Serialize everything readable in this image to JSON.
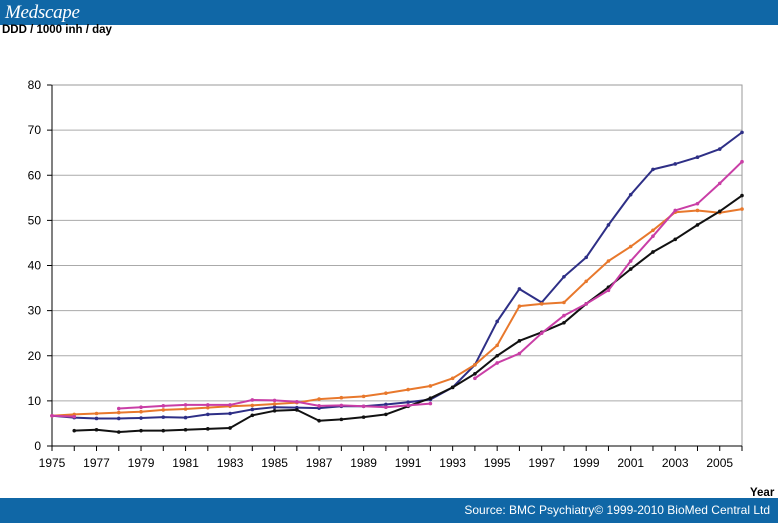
{
  "header": {
    "brand": "Medscape"
  },
  "footer": {
    "source": "Source: BMC Psychiatry© 1999-2010 BioMed Central Ltd"
  },
  "colors": {
    "bar": "#1067a6",
    "grid": "#aaaaaa"
  },
  "chart_data": {
    "type": "line",
    "title": "",
    "ylabel": "DDD / 1000 inh / day",
    "xlabel": "Year",
    "xlim": [
      1975,
      2006
    ],
    "ylim": [
      0,
      80
    ],
    "yticks": [
      0,
      10,
      20,
      30,
      40,
      50,
      60,
      70,
      80
    ],
    "xticks": [
      "1975",
      "1977",
      "1979",
      "1981",
      "1983",
      "1985",
      "1987",
      "1989",
      "1991",
      "1993",
      "1995",
      "1997",
      "1999",
      "2001",
      "2003",
      "2005"
    ],
    "grid": "horizontal",
    "series": [
      {
        "color": "#2e2f86",
        "x": [
          1975,
          1976,
          1977,
          1978,
          1979,
          1980,
          1981,
          1982,
          1983,
          1984,
          1985,
          1986,
          1987,
          1988,
          1989,
          1990,
          1991,
          1992,
          1993,
          1994,
          1995,
          1996,
          1997,
          1998,
          1999,
          2000,
          2001,
          2002,
          2003,
          2004,
          2005,
          2006
        ],
        "values": [
          6.7,
          6.3,
          6.1,
          6.1,
          6.2,
          6.4,
          6.3,
          7.0,
          7.2,
          8.1,
          8.6,
          8.5,
          8.4,
          8.8,
          8.8,
          9.2,
          9.7,
          10.3,
          13.0,
          18.0,
          27.6,
          34.8,
          31.8,
          37.5,
          41.8,
          49.0,
          55.7,
          61.3,
          62.5,
          64.0,
          65.8,
          69.5
        ]
      },
      {
        "color": "#e8782c",
        "x": [
          1975,
          1976,
          1977,
          1978,
          1979,
          1980,
          1981,
          1982,
          1983,
          1984,
          1985,
          1986,
          1987,
          1988,
          1989,
          1990,
          1991,
          1992,
          1993,
          1994,
          1995,
          1996,
          1997,
          1998,
          1999,
          2000,
          2001,
          2002,
          2003,
          2004,
          2005,
          2006
        ],
        "values": [
          6.7,
          7.0,
          7.2,
          7.4,
          7.6,
          8.0,
          8.2,
          8.5,
          8.8,
          9.0,
          9.3,
          9.6,
          10.4,
          10.7,
          11.0,
          11.7,
          12.5,
          13.3,
          15.0,
          18.0,
          22.3,
          31.0,
          31.5,
          31.8,
          36.5,
          41.0,
          44.2,
          47.8,
          51.8,
          52.2,
          51.7,
          52.5
        ]
      },
      {
        "color": "#111111",
        "x": [
          1976,
          1977,
          1978,
          1979,
          1980,
          1981,
          1982,
          1983,
          1984,
          1985,
          1986,
          1987,
          1988,
          1989,
          1990,
          1991,
          1992,
          1993,
          1994,
          1995,
          1996,
          1997,
          1998,
          1999,
          2000,
          2001,
          2002,
          2003,
          2004,
          2005,
          2006
        ],
        "values": [
          3.4,
          3.6,
          3.1,
          3.4,
          3.4,
          3.6,
          3.8,
          4.0,
          6.8,
          7.8,
          8.0,
          5.6,
          5.9,
          6.4,
          7.0,
          8.8,
          10.6,
          13.0,
          16.0,
          20.0,
          23.3,
          25.2,
          27.3,
          31.5,
          35.2,
          39.2,
          43.0,
          45.8,
          49.0,
          52.0,
          55.5
        ]
      },
      {
        "color": "#c93ea6",
        "x": [
          1975,
          1976,
          1977,
          1978,
          1979,
          1980,
          1981,
          1982,
          1983,
          1984,
          1985,
          1986,
          1987,
          1988,
          1989,
          1990,
          1991,
          1992,
          1993,
          1994,
          1995,
          1996,
          1997,
          1998,
          1999,
          2000,
          2001,
          2002,
          2003,
          2004,
          2005,
          2006
        ],
        "values": [
          6.7,
          6.5,
          null,
          8.3,
          8.6,
          8.9,
          9.1,
          9.1,
          9.1,
          10.2,
          10.1,
          9.8,
          8.9,
          9.0,
          8.8,
          8.6,
          9.0,
          9.4,
          null,
          15.0,
          18.4,
          20.5,
          25.0,
          28.9,
          31.5,
          34.5,
          41.0,
          46.5,
          52.2,
          53.7,
          58.2,
          63.0
        ]
      }
    ]
  }
}
